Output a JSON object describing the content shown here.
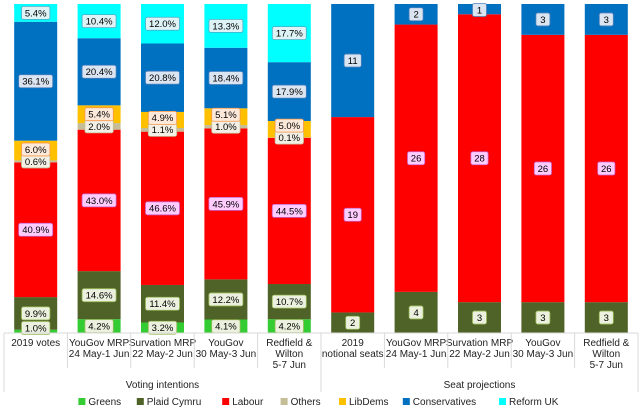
{
  "chart_data": {
    "type": "bar",
    "stacked": true,
    "colors": {
      "Greens": "#33cc33",
      "Plaid Cymru": "#4f6228",
      "Labour": "#ff0000",
      "Others": "#c4bd97",
      "LibDems": "#ffc000",
      "Conservatives": "#0070c0",
      "Reform UK": "#00ffff"
    },
    "legend": [
      "Greens",
      "Plaid Cymru",
      "Labour",
      "Others",
      "LibDems",
      "Conservatives",
      "Reform UK"
    ],
    "groups": [
      {
        "label": "Voting intentions",
        "columns": [
          0,
          1,
          2,
          3,
          4
        ]
      },
      {
        "label": "Seat projections",
        "columns": [
          5,
          6,
          7,
          8,
          9
        ]
      }
    ],
    "columns": [
      {
        "label": [
          "2019 votes"
        ],
        "unit": "percent",
        "stack": [
          {
            "party": "Greens",
            "value": 1.0,
            "text": "1.0%"
          },
          {
            "party": "Plaid Cymru",
            "value": 9.9,
            "text": "9.9%"
          },
          {
            "party": "Labour",
            "value": 40.9,
            "text": "40.9%"
          },
          {
            "party": "Others",
            "value": 0.6,
            "text": "0.6%"
          },
          {
            "party": "LibDems",
            "value": 6.0,
            "text": "6.0%"
          },
          {
            "party": "Conservatives",
            "value": 36.1,
            "text": "36.1%"
          },
          {
            "party": "Reform UK",
            "value": 5.4,
            "text": "5.4%"
          }
        ]
      },
      {
        "label": [
          "YouGov MRP",
          "24 May-1 Jun"
        ],
        "unit": "percent",
        "stack": [
          {
            "party": "Greens",
            "value": 4.2,
            "text": "4.2%"
          },
          {
            "party": "Plaid Cymru",
            "value": 14.6,
            "text": "14.6%"
          },
          {
            "party": "Labour",
            "value": 43.0,
            "text": "43.0%"
          },
          {
            "party": "Others",
            "value": 2.0,
            "text": "2.0%"
          },
          {
            "party": "LibDems",
            "value": 5.4,
            "text": "5.4%"
          },
          {
            "party": "Conservatives",
            "value": 20.4,
            "text": "20.4%"
          },
          {
            "party": "Reform UK",
            "value": 10.4,
            "text": "10.4%"
          }
        ]
      },
      {
        "label": [
          "Survation MRP",
          "22 May-2 Jun"
        ],
        "unit": "percent",
        "stack": [
          {
            "party": "Greens",
            "value": 3.2,
            "text": "3.2%"
          },
          {
            "party": "Plaid Cymru",
            "value": 11.4,
            "text": "11.4%"
          },
          {
            "party": "Labour",
            "value": 46.6,
            "text": "46.6%"
          },
          {
            "party": "Others",
            "value": 1.1,
            "text": "1.1%"
          },
          {
            "party": "LibDems",
            "value": 4.9,
            "text": "4.9%"
          },
          {
            "party": "Conservatives",
            "value": 20.8,
            "text": "20.8%"
          },
          {
            "party": "Reform UK",
            "value": 12.0,
            "text": "12.0%"
          }
        ]
      },
      {
        "label": [
          "YouGov",
          "30 May-3 Jun"
        ],
        "unit": "percent",
        "stack": [
          {
            "party": "Greens",
            "value": 4.1,
            "text": "4.1%"
          },
          {
            "party": "Plaid Cymru",
            "value": 12.2,
            "text": "12.2%"
          },
          {
            "party": "Labour",
            "value": 45.9,
            "text": "45.9%"
          },
          {
            "party": "Others",
            "value": 1.0,
            "text": "1.0%"
          },
          {
            "party": "LibDems",
            "value": 5.1,
            "text": "5.1%"
          },
          {
            "party": "Conservatives",
            "value": 18.4,
            "text": "18.4%"
          },
          {
            "party": "Reform UK",
            "value": 13.3,
            "text": "13.3%"
          }
        ]
      },
      {
        "label": [
          "Redfield &",
          "Wilton",
          "5-7 Jun"
        ],
        "unit": "percent",
        "stack": [
          {
            "party": "Greens",
            "value": 4.2,
            "text": "4.2%"
          },
          {
            "party": "Plaid Cymru",
            "value": 10.7,
            "text": "10.7%"
          },
          {
            "party": "Labour",
            "value": 44.5,
            "text": "44.5%"
          },
          {
            "party": "Others",
            "value": 0.1,
            "text": "0.1%"
          },
          {
            "party": "LibDems",
            "value": 5.0,
            "text": "5.0%"
          },
          {
            "party": "Conservatives",
            "value": 17.9,
            "text": "17.9%"
          },
          {
            "party": "Reform UK",
            "value": 17.7,
            "text": "17.7%"
          }
        ]
      },
      {
        "label": [
          "2019",
          "notional seats"
        ],
        "unit": "seats",
        "stack": [
          {
            "party": "Plaid Cymru",
            "value": 2,
            "text": "2"
          },
          {
            "party": "Labour",
            "value": 19,
            "text": "19"
          },
          {
            "party": "Conservatives",
            "value": 11,
            "text": "11"
          }
        ]
      },
      {
        "label": [
          "YouGov MRP",
          "24 May-1 Jun"
        ],
        "unit": "seats",
        "stack": [
          {
            "party": "Plaid Cymru",
            "value": 4,
            "text": "4"
          },
          {
            "party": "Labour",
            "value": 26,
            "text": "26"
          },
          {
            "party": "Conservatives",
            "value": 2,
            "text": "2"
          }
        ]
      },
      {
        "label": [
          "Survation MRP",
          "22 May-2 Jun"
        ],
        "unit": "seats",
        "stack": [
          {
            "party": "Plaid Cymru",
            "value": 3,
            "text": "3"
          },
          {
            "party": "Labour",
            "value": 28,
            "text": "28"
          },
          {
            "party": "Conservatives",
            "value": 1,
            "text": "1"
          }
        ]
      },
      {
        "label": [
          "YouGov",
          "30 May-3 Jun"
        ],
        "unit": "seats",
        "stack": [
          {
            "party": "Plaid Cymru",
            "value": 3,
            "text": "3"
          },
          {
            "party": "Labour",
            "value": 26,
            "text": "26"
          },
          {
            "party": "Conservatives",
            "value": 3,
            "text": "3"
          }
        ]
      },
      {
        "label": [
          "Redfield &",
          "Wilton",
          "5-7 Jun"
        ],
        "unit": "seats",
        "stack": [
          {
            "party": "Plaid Cymru",
            "value": 3,
            "text": "3"
          },
          {
            "party": "Labour",
            "value": 26,
            "text": "26"
          },
          {
            "party": "Conservatives",
            "value": 3,
            "text": "3"
          }
        ]
      }
    ]
  }
}
